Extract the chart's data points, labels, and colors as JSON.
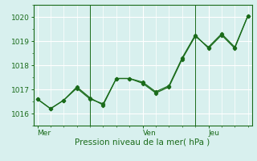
{
  "title": "Pression niveau de la mer( hPa )",
  "background_color": "#d8f0ee",
  "grid_color": "#ffffff",
  "line_color": "#1a6b1a",
  "marker_color": "#1a6b1a",
  "ylim": [
    1015.5,
    1020.5
  ],
  "yticks": [
    1016,
    1017,
    1018,
    1019,
    1020
  ],
  "xlabel_ticks": [
    "Mer",
    "Ven",
    "Jeu"
  ],
  "series1_x": [
    0,
    1,
    2,
    3,
    4,
    5,
    6,
    7,
    8,
    9,
    10,
    11,
    12,
    13,
    14,
    15,
    16
  ],
  "series1_y": [
    1016.6,
    1016.2,
    1016.55,
    1017.1,
    1016.65,
    1016.35,
    1017.45,
    1017.45,
    1017.3,
    1016.9,
    1017.15,
    1018.3,
    1019.25,
    1018.7,
    1019.25,
    1018.7,
    1020.05
  ],
  "series2_x": [
    0,
    1,
    2,
    3,
    4,
    5,
    6,
    7,
    8,
    9,
    10,
    11,
    12,
    13,
    14,
    15,
    16
  ],
  "series2_y": [
    1016.6,
    1016.2,
    1016.55,
    1017.05,
    1016.6,
    1016.4,
    1017.45,
    1017.45,
    1017.25,
    1016.85,
    1017.1,
    1018.25,
    1019.2,
    1018.75,
    1019.3,
    1018.75,
    1020.05
  ],
  "vline_positions": [
    4,
    12
  ],
  "xlim": [
    -0.3,
    16.3
  ]
}
